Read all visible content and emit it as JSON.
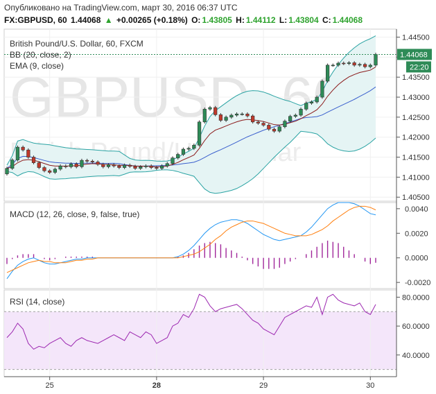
{
  "header": {
    "published": "Опубликовано на TradingView.com, март 30, 2016 06:37 UTC",
    "symbol": "FX:GBPUSD, 60",
    "last": "1.44068",
    "change_arrow": "▲",
    "change": "+0.00265 (+0.18%)",
    "o_label": "O:",
    "o_value": "1.43805",
    "h_label": "H:",
    "h_value": "1.44112",
    "l_label": "L:",
    "l_value": "1.43804",
    "c_label": "C:",
    "c_value": "1.44068"
  },
  "main_pane": {
    "title": "British Pound/U.S. Dollar, 60, FXCM",
    "bb_label": "BB (20, close, 2)",
    "ema_label": "EMA (9, close)",
    "watermark_big": "GBPUSD, 60",
    "watermark_small": "British Pound/U.S. Dollar",
    "price_badge": "1.44068",
    "time_badge": "22:20",
    "y_ticks": [
      "1.44500",
      "1.44000",
      "1.43500",
      "1.43000",
      "1.42500",
      "1.42000",
      "1.41500",
      "1.41000",
      "1.40500"
    ]
  },
  "macd_pane": {
    "label": "MACD (12, 26, close, 9, false, true)",
    "y_ticks": [
      "0.0040",
      "0.0020",
      "0.0000",
      "-0.0020"
    ]
  },
  "rsi_pane": {
    "label": "RSI (14, close)",
    "y_ticks": [
      "80.0000",
      "60.0000",
      "40.0000"
    ]
  },
  "x_axis": {
    "ticks": [
      "25",
      "28",
      "29",
      "30"
    ]
  },
  "colors": {
    "up": "#2e8b57",
    "down": "#c0392b",
    "bb": "#2aa3a3",
    "bb_fill": "#e5f4f4",
    "ema": "#8b1a1a",
    "macd": "#2196f3",
    "signal": "#ff7f0e",
    "hist": "#a0269a",
    "rsi": "#9c27b0",
    "rsi_band": "#f4e6fa",
    "axis_label_bg": "#2e8b57"
  },
  "chart_data": [
    {
      "type": "candlestick",
      "title": "British Pound/U.S. Dollar, 60, FXCM",
      "ylim": [
        1.404,
        1.447
      ],
      "open": [
        1.4108,
        1.4122,
        1.4143,
        1.4175,
        1.4168,
        1.415,
        1.4136,
        1.4124,
        1.4116,
        1.4112,
        1.412,
        1.4128,
        1.4126,
        1.4133,
        1.4126,
        1.4142,
        1.414,
        1.4138,
        1.4132,
        1.4126,
        1.4131,
        1.4128,
        1.4124,
        1.413,
        1.4127,
        1.4122,
        1.4126,
        1.4128,
        1.4124,
        1.4122,
        1.4128,
        1.4134,
        1.4148,
        1.4157,
        1.417,
        1.4172,
        1.418,
        1.4238,
        1.427,
        1.4274,
        1.4256,
        1.4242,
        1.425,
        1.4255,
        1.4258,
        1.4258,
        1.4253,
        1.4238,
        1.4235,
        1.423,
        1.422,
        1.4215,
        1.4226,
        1.424,
        1.4252,
        1.4255,
        1.427,
        1.4285,
        1.4288,
        1.43,
        1.434,
        1.438,
        1.438,
        1.4385,
        1.4384,
        1.4386,
        1.438,
        1.4382,
        1.4376,
        1.438
      ],
      "close": [
        1.4122,
        1.4143,
        1.4175,
        1.4168,
        1.415,
        1.4136,
        1.4124,
        1.4116,
        1.4112,
        1.412,
        1.4128,
        1.4126,
        1.4133,
        1.4126,
        1.4142,
        1.414,
        1.4138,
        1.4132,
        1.4126,
        1.4131,
        1.4128,
        1.4124,
        1.413,
        1.4127,
        1.4122,
        1.4126,
        1.4128,
        1.4124,
        1.4122,
        1.4128,
        1.4134,
        1.4148,
        1.4157,
        1.417,
        1.4172,
        1.418,
        1.4238,
        1.427,
        1.4274,
        1.4256,
        1.4242,
        1.425,
        1.4255,
        1.4258,
        1.4258,
        1.4253,
        1.4238,
        1.4235,
        1.423,
        1.422,
        1.4215,
        1.4226,
        1.424,
        1.4252,
        1.4255,
        1.427,
        1.4285,
        1.4288,
        1.43,
        1.434,
        1.438,
        1.438,
        1.4385,
        1.4384,
        1.4386,
        1.438,
        1.4382,
        1.4376,
        1.438,
        1.4407
      ]
    },
    {
      "type": "line",
      "title": "MACD (12, 26, close, 9, false, true)",
      "ylim": [
        -0.0025,
        0.0045
      ],
      "series": [
        {
          "values": [
            -0.0017,
            -0.0011,
            -0.0006,
            -0.0003,
            -0.0001,
            0.0,
            -0.0002,
            -0.0004,
            -0.0005,
            -0.0005,
            -0.0004,
            -0.0003,
            -0.0002,
            -0.0001,
            -0.0001,
            0.0,
            0.0,
            0.0,
            0.0,
            0.0,
            0.0,
            0.0,
            0.0,
            0.0,
            0.0,
            0.0,
            0.0,
            0.0,
            0.0,
            0.0,
            0.0,
            0.0,
            0.0001,
            0.0003,
            0.0006,
            0.001,
            0.0015,
            0.002,
            0.0024,
            0.0027,
            0.0029,
            0.003,
            0.0031,
            0.0031,
            0.003,
            0.0028,
            0.0025,
            0.0022,
            0.0019,
            0.0017,
            0.0015,
            0.0014,
            0.0015,
            0.0016,
            0.0017,
            0.0018,
            0.0021,
            0.0025,
            0.003,
            0.0035,
            0.004,
            0.0043,
            0.0045,
            0.0045,
            0.0045,
            0.0044,
            0.0042,
            0.0039,
            0.0036,
            0.0035
          ]
        },
        {
          "values": [
            -0.0012,
            -0.001,
            -0.0008,
            -0.0006,
            -0.0004,
            -0.0003,
            -0.0002,
            -0.0003,
            -0.0003,
            -0.0004,
            -0.0004,
            -0.0004,
            -0.0003,
            -0.0002,
            -0.0002,
            -0.0001,
            -0.0001,
            0.0,
            0.0,
            0.0,
            0.0,
            0.0,
            0.0,
            0.0,
            0.0,
            0.0,
            0.0,
            0.0,
            0.0,
            0.0,
            0.0,
            0.0,
            0.0,
            0.0001,
            0.0002,
            0.0003,
            0.0005,
            0.0008,
            0.0011,
            0.0015,
            0.0018,
            0.0022,
            0.0025,
            0.0027,
            0.0029,
            0.003,
            0.003,
            0.0029,
            0.0028,
            0.0026,
            0.0024,
            0.0022,
            0.002,
            0.0019,
            0.0018,
            0.0018,
            0.0018,
            0.0019,
            0.0021,
            0.0023,
            0.0026,
            0.003,
            0.0033,
            0.0036,
            0.0039,
            0.0041,
            0.0042,
            0.0042,
            0.0041,
            0.0039
          ]
        }
      ],
      "histogram": [
        -0.0005,
        -0.0001,
        0.0002,
        0.0003,
        0.0003,
        0.0003,
        0.0,
        -0.0001,
        -0.0002,
        -0.0001,
        0.0,
        0.0001,
        0.0001,
        0.0001,
        0.0001,
        0.0001,
        0.0001,
        0.0,
        0.0,
        0.0,
        0.0,
        0.0,
        0.0,
        0.0,
        0.0,
        0.0,
        0.0,
        0.0,
        0.0,
        0.0,
        0.0,
        0.0,
        0.0001,
        0.0002,
        0.0004,
        0.0007,
        0.001,
        0.0012,
        0.0013,
        0.0012,
        0.0011,
        0.0008,
        0.0006,
        0.0004,
        0.0001,
        -0.0002,
        -0.0005,
        -0.0007,
        -0.0009,
        -0.0009,
        -0.0009,
        -0.0008,
        -0.0005,
        -0.0003,
        -0.0001,
        0.0,
        0.0003,
        0.0006,
        0.0009,
        0.0012,
        0.0014,
        0.0013,
        0.0012,
        0.0009,
        0.0006,
        0.0003,
        0.0,
        -0.0003,
        -0.0005,
        -0.0004
      ]
    },
    {
      "type": "line",
      "title": "RSI (14, close)",
      "ylim": [
        25,
        85
      ],
      "series": [
        {
          "values": [
            52,
            56,
            62,
            58,
            48,
            44,
            46,
            45,
            48,
            50,
            52,
            48,
            46,
            50,
            52,
            50,
            49,
            48,
            50,
            52,
            54,
            52,
            50,
            56,
            54,
            52,
            56,
            54,
            48,
            50,
            52,
            60,
            62,
            68,
            66,
            72,
            82,
            80,
            74,
            70,
            72,
            73,
            74,
            75,
            72,
            68,
            64,
            62,
            58,
            56,
            54,
            60,
            66,
            68,
            70,
            72,
            74,
            73,
            80,
            68,
            80,
            82,
            78,
            76,
            75,
            74,
            76,
            70,
            68,
            75
          ]
        }
      ]
    }
  ]
}
